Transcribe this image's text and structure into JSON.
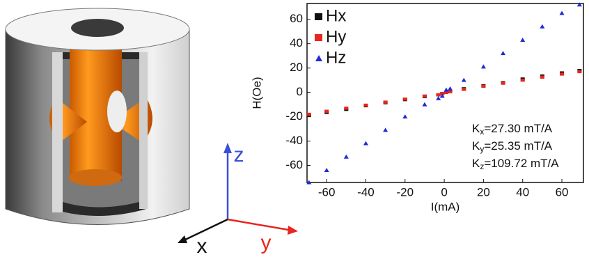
{
  "chart_data": {
    "type": "scatter",
    "x": [
      -69,
      -60,
      -50,
      -40,
      -30,
      -20,
      -10,
      -3,
      -1,
      1,
      3,
      10,
      20,
      30,
      40,
      50,
      60,
      69
    ],
    "series": [
      {
        "name": "Hx",
        "color": "#111111",
        "marker": "square",
        "values": [
          -19,
          -16.5,
          -14,
          -11,
          -8.5,
          -6,
          -3.5,
          -2,
          -1,
          0,
          1,
          3,
          5.5,
          8,
          11,
          13.5,
          16,
          18
        ]
      },
      {
        "name": "Hy",
        "color": "#e8251f",
        "marker": "square",
        "values": [
          -18,
          -15.5,
          -13,
          -10.5,
          -8,
          -5.5,
          -3,
          -2,
          -1,
          0,
          0.5,
          2.5,
          5,
          7.5,
          10,
          12.5,
          15,
          17
        ]
      },
      {
        "name": "Hz",
        "color": "#1f2bd6",
        "marker": "triangle",
        "values": [
          -74,
          -64,
          -53,
          -42,
          -31,
          -20,
          -10,
          -5,
          -3,
          2,
          3,
          10,
          21,
          32,
          43,
          54,
          65,
          72
        ]
      }
    ],
    "xlabel": "I(mA)",
    "ylabel": "H(Oe)",
    "xlim": [
      -70,
      71
    ],
    "ylim": [
      -74,
      73
    ],
    "xticks": [
      -60,
      -40,
      -20,
      0,
      20,
      40,
      60
    ],
    "yticks": [
      -60,
      -40,
      -20,
      0,
      20,
      40,
      60
    ],
    "legend": "upper left",
    "annotations": [
      {
        "symbol": "K",
        "sub": "x",
        "text": "=27.30 mT/A"
      },
      {
        "symbol": "K",
        "sub": "y",
        "text": "=25.35 mT/A"
      },
      {
        "symbol": "K",
        "sub": "z",
        "text": "=109.72 mT/A"
      }
    ]
  },
  "illustration": {
    "axes": [
      {
        "label": "z",
        "color": "#3a4fd8"
      },
      {
        "label": "x",
        "color": "#111111"
      },
      {
        "label": "y",
        "color": "#e8251f"
      }
    ]
  }
}
